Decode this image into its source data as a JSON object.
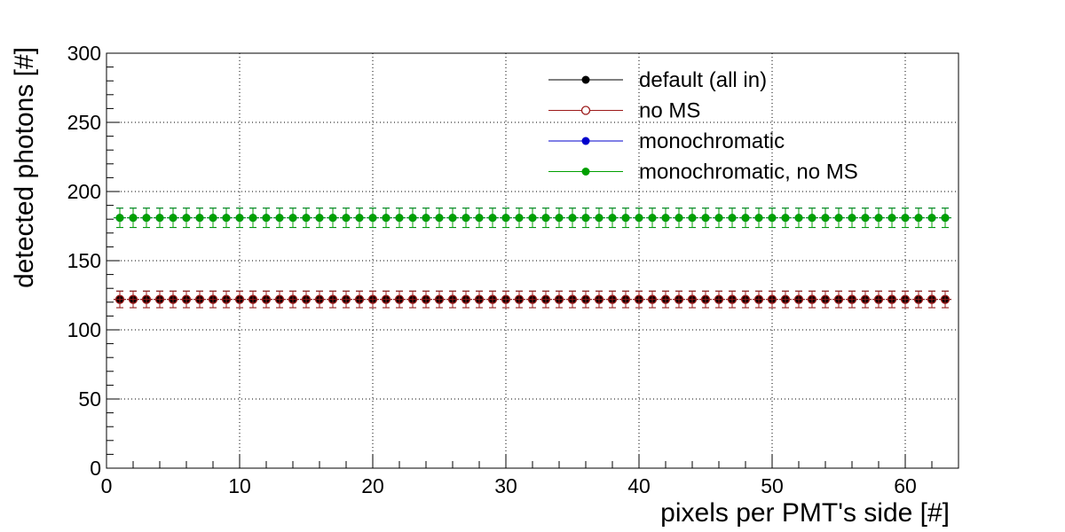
{
  "chart_data": {
    "type": "scatter",
    "xlabel": "pixels per PMT's side [#]",
    "ylabel": "detected photons [#]",
    "xlim": [
      0,
      64
    ],
    "ylim": [
      0,
      300
    ],
    "x_ticks": [
      "0",
      "10",
      "20",
      "30",
      "40",
      "50",
      "60"
    ],
    "y_ticks": [
      "0",
      "50",
      "100",
      "150",
      "200",
      "250",
      "300"
    ],
    "grid": true,
    "legend_position": "top-right",
    "x": [
      1,
      2,
      3,
      4,
      5,
      6,
      7,
      8,
      9,
      10,
      11,
      12,
      13,
      14,
      15,
      16,
      17,
      18,
      19,
      20,
      21,
      22,
      23,
      24,
      25,
      26,
      27,
      28,
      29,
      30,
      31,
      32,
      33,
      34,
      35,
      36,
      37,
      38,
      39,
      40,
      41,
      42,
      43,
      44,
      45,
      46,
      47,
      48,
      49,
      50,
      51,
      52,
      53,
      54,
      55,
      56,
      57,
      58,
      59,
      60,
      61,
      62,
      63
    ],
    "series": [
      {
        "name": "default (all in)",
        "color": "#000000",
        "marker": "filled-circle",
        "values": [
          122,
          122,
          122,
          122,
          122,
          122,
          122,
          122,
          122,
          122,
          122,
          122,
          122,
          122,
          122,
          122,
          122,
          122,
          122,
          122,
          122,
          122,
          122,
          122,
          122,
          122,
          122,
          122,
          122,
          122,
          122,
          122,
          122,
          122,
          122,
          122,
          122,
          122,
          122,
          122,
          122,
          122,
          122,
          122,
          122,
          122,
          122,
          122,
          122,
          122,
          122,
          122,
          122,
          122,
          122,
          122,
          122,
          122,
          122,
          122,
          122,
          122,
          122
        ],
        "error": 6
      },
      {
        "name": "no MS",
        "color": "#9c1a1a",
        "marker": "open-circle",
        "values": [
          122,
          122,
          122,
          122,
          122,
          122,
          122,
          122,
          122,
          122,
          122,
          122,
          122,
          122,
          122,
          122,
          122,
          122,
          122,
          122,
          122,
          122,
          122,
          122,
          122,
          122,
          122,
          122,
          122,
          122,
          122,
          122,
          122,
          122,
          122,
          122,
          122,
          122,
          122,
          122,
          122,
          122,
          122,
          122,
          122,
          122,
          122,
          122,
          122,
          122,
          122,
          122,
          122,
          122,
          122,
          122,
          122,
          122,
          122,
          122,
          122,
          122,
          122
        ],
        "error": 6
      },
      {
        "name": "monochromatic",
        "color": "#0000cc",
        "marker": "filled-circle",
        "values": [
          181,
          181,
          181,
          181,
          181,
          181,
          181,
          181,
          181,
          181,
          181,
          181,
          181,
          181,
          181,
          181,
          181,
          181,
          181,
          181,
          181,
          181,
          181,
          181,
          181,
          181,
          181,
          181,
          181,
          181,
          181,
          181,
          181,
          181,
          181,
          181,
          181,
          181,
          181,
          181,
          181,
          181,
          181,
          181,
          181,
          181,
          181,
          181,
          181,
          181,
          181,
          181,
          181,
          181,
          181,
          181,
          181,
          181,
          181,
          181,
          181,
          181,
          181
        ],
        "error": 7
      },
      {
        "name": "monochromatic, no MS",
        "color": "#00a000",
        "marker": "filled-circle",
        "values": [
          181,
          181,
          181,
          181,
          181,
          181,
          181,
          181,
          181,
          181,
          181,
          181,
          181,
          181,
          181,
          181,
          181,
          181,
          181,
          181,
          181,
          181,
          181,
          181,
          181,
          181,
          181,
          181,
          181,
          181,
          181,
          181,
          181,
          181,
          181,
          181,
          181,
          181,
          181,
          181,
          181,
          181,
          181,
          181,
          181,
          181,
          181,
          181,
          181,
          181,
          181,
          181,
          181,
          181,
          181,
          181,
          181,
          181,
          181,
          181,
          181,
          181,
          181
        ],
        "error": 7
      }
    ]
  }
}
